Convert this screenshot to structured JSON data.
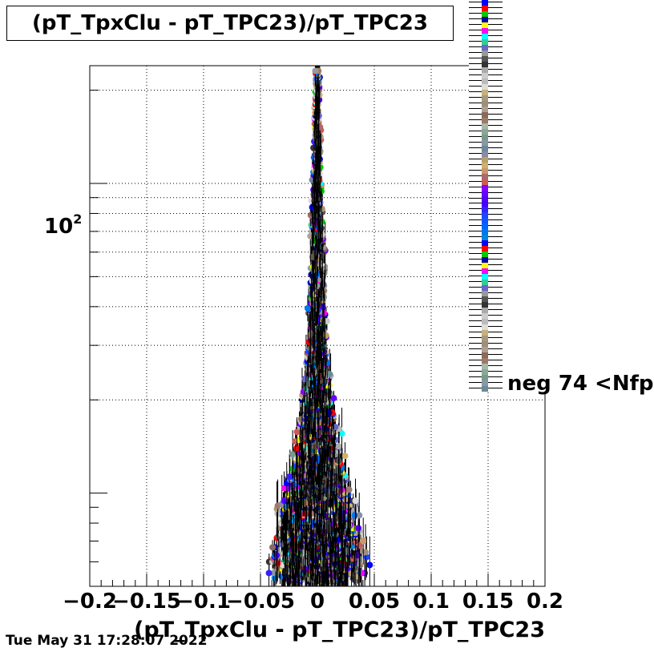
{
  "title": "(pT_TpxClu - pT_TPC23)/pT_TPC23",
  "timestamp": "Tue May 31 17:28:07 2022",
  "legend": {
    "last_label": "neg 74 <Nfp",
    "colors": [
      "#0000ff",
      "#ff0000",
      "#00cc00",
      "#0000aa",
      "#ffff00",
      "#ff00ff",
      "#00ffff",
      "#33cc99",
      "#6666cc",
      "#999999",
      "#555555",
      "#333333",
      "#aaaaaa",
      "#cccccc",
      "#bbbbbb",
      "#dddddd",
      "#c8b27a",
      "#a89a7a",
      "#9e8e7e",
      "#b0a090",
      "#8a6a5a",
      "#9e7a6a",
      "#aab8aa",
      "#88a898",
      "#7a9a8a",
      "#8898a8",
      "#6a8a9a",
      "#8a8aaa",
      "#b8a06a",
      "#d0b070",
      "#c89a6a",
      "#aa6a6a",
      "#cc5a5a",
      "#8800ff",
      "#6600ff",
      "#5500ee",
      "#4400ff",
      "#3322ff",
      "#2244ff",
      "#1155ff",
      "#0066ff",
      "#0077ee",
      "#0088dd"
    ]
  },
  "chart_data": {
    "type": "scatter",
    "title": "(pT_TpxClu - pT_TPC23)/pT_TPC23",
    "xlabel": "(pT_TpxClu - pT_TPC23)/pT_TPC23",
    "ylabel": "",
    "xlim": [
      -0.2,
      0.2
    ],
    "ylim": [
      5,
      240
    ],
    "yscale": "log",
    "grid": true,
    "xticks": [
      -0.2,
      -0.15,
      -0.1,
      -0.05,
      0,
      0.05,
      0.1,
      0.15,
      0.2
    ],
    "xtick_labels": [
      "−0.2",
      "−0.15",
      "−0.1",
      "−0.05",
      "0",
      "0.05",
      "0.1",
      "0.15",
      "0.2"
    ],
    "ytick_label_base": "10",
    "ytick_label_exp": "2",
    "ytick_value": 100,
    "profile": [
      {
        "y": 5,
        "halfwidth": 0.05
      },
      {
        "y": 7,
        "halfwidth": 0.045
      },
      {
        "y": 9,
        "halfwidth": 0.04
      },
      {
        "y": 11,
        "halfwidth": 0.03
      },
      {
        "y": 14,
        "halfwidth": 0.025
      },
      {
        "y": 18,
        "halfwidth": 0.018
      },
      {
        "y": 25,
        "halfwidth": 0.013
      },
      {
        "y": 35,
        "halfwidth": 0.01
      },
      {
        "y": 50,
        "halfwidth": 0.008
      },
      {
        "y": 80,
        "halfwidth": 0.006
      },
      {
        "y": 120,
        "halfwidth": 0.004
      },
      {
        "y": 190,
        "halfwidth": 0.003
      },
      {
        "y": 230,
        "halfwidth": 0.002
      }
    ]
  }
}
